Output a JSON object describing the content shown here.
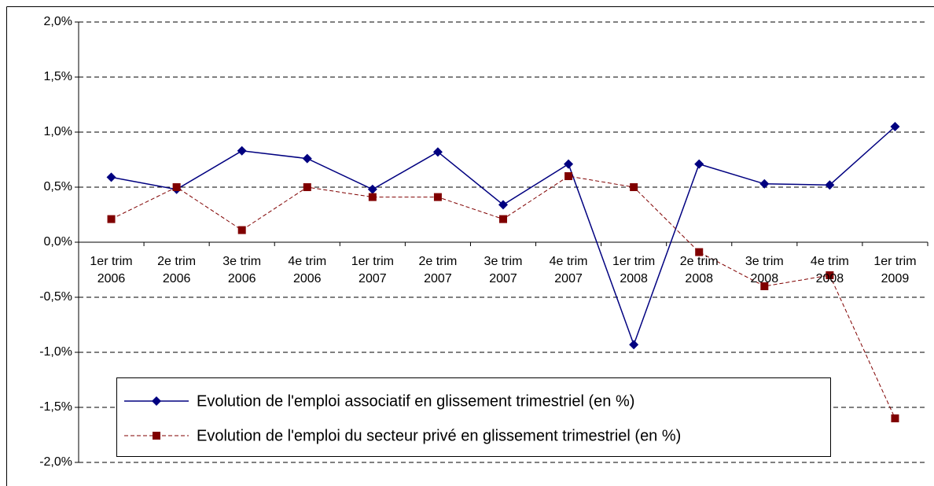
{
  "chart_data": {
    "type": "line",
    "categories": [
      "1er trim 2006",
      "2e trim 2006",
      "3e trim 2006",
      "4e trim 2006",
      "1er trim 2007",
      "2e trim 2007",
      "3e trim 2007",
      "4e trim 2007",
      "1er trim 2008",
      "2e trim 2008",
      "3e trim 2008",
      "4e trim 2008",
      "1er trim 2009"
    ],
    "series": [
      {
        "name": "Evolution de l'emploi associatif en glissement trimestriel (en %)",
        "color": "#000080",
        "marker": "diamond",
        "dash": "solid",
        "values": [
          0.59,
          0.48,
          0.83,
          0.76,
          0.48,
          0.82,
          0.34,
          0.71,
          -0.93,
          0.71,
          0.53,
          0.52,
          1.05
        ]
      },
      {
        "name": "Evolution de l'emploi du secteur privé en glissement trimestriel (en %)",
        "color": "#800000",
        "marker": "square",
        "dash": "dashed",
        "values": [
          0.21,
          0.5,
          0.11,
          0.5,
          0.41,
          0.41,
          0.21,
          0.6,
          0.5,
          -0.09,
          -0.4,
          -0.3,
          -1.6
        ]
      }
    ],
    "ylim": [
      -2.0,
      2.0
    ],
    "yticks": [
      {
        "value": -2.0,
        "label": "-2,0%"
      },
      {
        "value": -1.5,
        "label": "-1,5%"
      },
      {
        "value": -1.0,
        "label": "-1,0%"
      },
      {
        "value": -0.5,
        "label": "-0,5%"
      },
      {
        "value": 0,
        "label": "0,0%"
      },
      {
        "value": 0.5,
        "label": "0,5%"
      },
      {
        "value": 1.0,
        "label": "1,0%"
      },
      {
        "value": 1.5,
        "label": "1,5%"
      },
      {
        "value": 2.0,
        "label": "2,0%"
      }
    ],
    "grid": true
  }
}
